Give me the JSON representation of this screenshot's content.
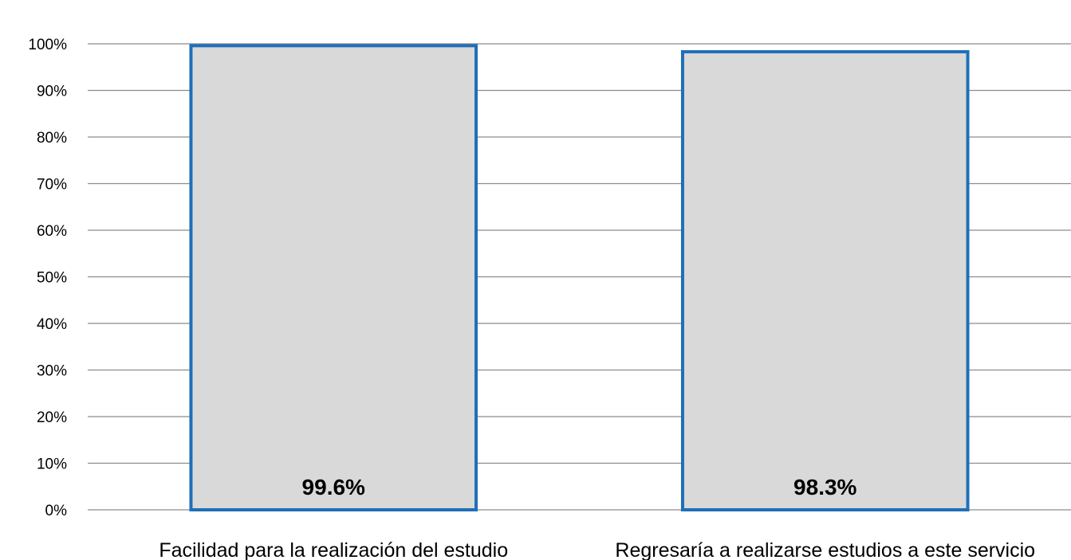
{
  "chart_data": {
    "type": "bar",
    "categories": [
      "Facilidad para la realización del estudio",
      "Regresaría a realizarse estudios a este servicio"
    ],
    "values": [
      99.6,
      98.3
    ],
    "data_labels": [
      "99.6%",
      "98.3%"
    ],
    "ylim": [
      0,
      100
    ],
    "yticks": [
      0,
      10,
      20,
      30,
      40,
      50,
      60,
      70,
      80,
      90,
      100
    ],
    "ytick_labels": [
      "0%",
      "10%",
      "20%",
      "30%",
      "40%",
      "50%",
      "60%",
      "70%",
      "80%",
      "90%",
      "100%"
    ],
    "title": "",
    "xlabel": "",
    "ylabel": "",
    "grid": true,
    "legend": "none",
    "colors": {
      "bar_fill": "#d9d9d9",
      "bar_stroke": "#1f6fb8",
      "gridline": "#8c8c8c"
    }
  }
}
